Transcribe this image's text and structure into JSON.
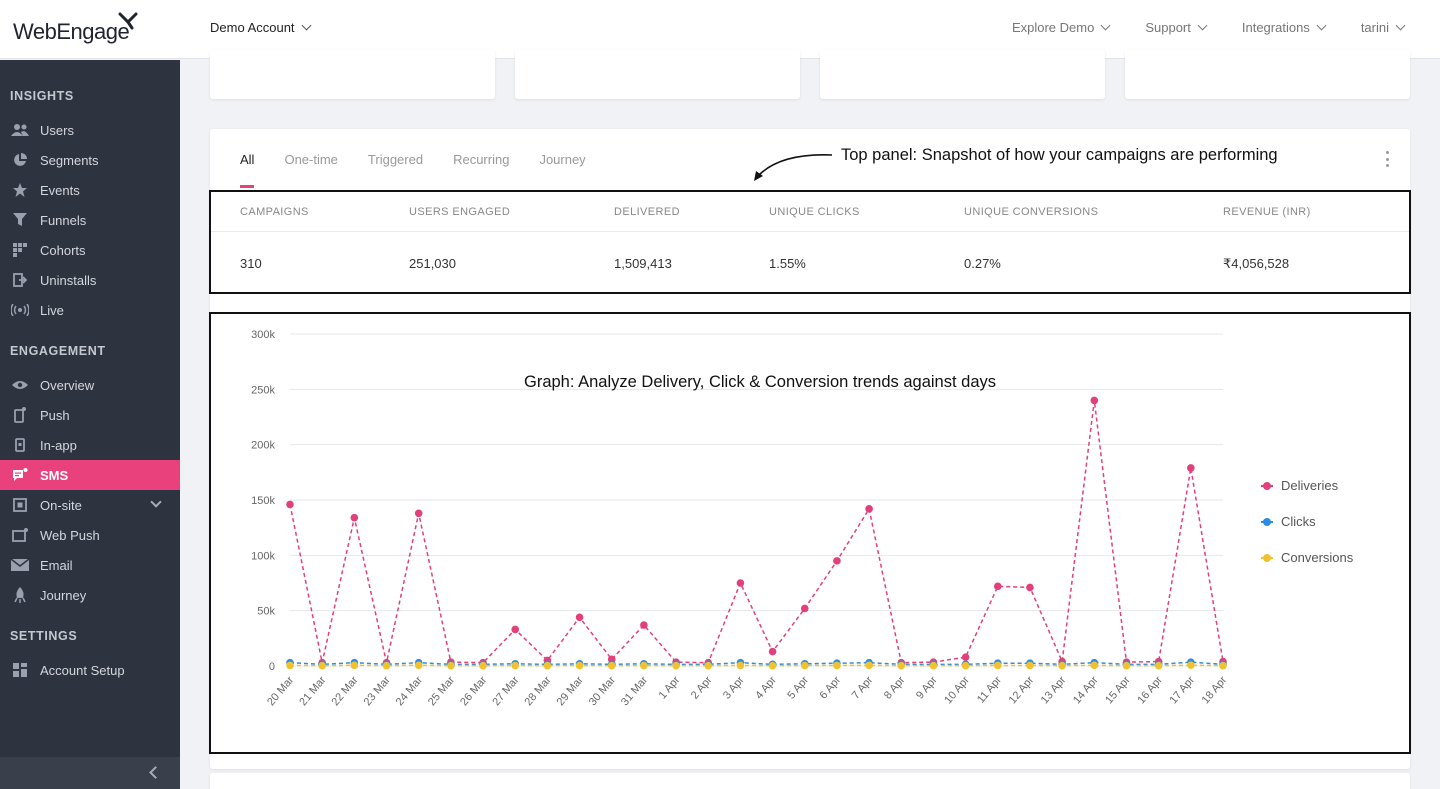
{
  "header": {
    "logo_text": "WebEngage",
    "account": "Demo Account",
    "nav": [
      "Explore Demo",
      "Support",
      "Integrations",
      "tarini"
    ]
  },
  "sidebar": {
    "sections": [
      {
        "title": "INSIGHTS",
        "items": [
          {
            "label": "Users",
            "icon": "users-icon"
          },
          {
            "label": "Segments",
            "icon": "pie-icon"
          },
          {
            "label": "Events",
            "icon": "star-icon"
          },
          {
            "label": "Funnels",
            "icon": "funnel-icon"
          },
          {
            "label": "Cohorts",
            "icon": "grid-icon"
          },
          {
            "label": "Uninstalls",
            "icon": "exit-icon"
          },
          {
            "label": "Live",
            "icon": "broadcast-icon"
          }
        ]
      },
      {
        "title": "ENGAGEMENT",
        "items": [
          {
            "label": "Overview",
            "icon": "eye-icon"
          },
          {
            "label": "Push",
            "icon": "mobile-icon"
          },
          {
            "label": "In-app",
            "icon": "tablet-icon"
          },
          {
            "label": "SMS",
            "icon": "chat-icon",
            "active": true
          },
          {
            "label": "On-site",
            "icon": "monitor-icon",
            "expandable": true
          },
          {
            "label": "Web Push",
            "icon": "browser-icon"
          },
          {
            "label": "Email",
            "icon": "mail-icon"
          },
          {
            "label": "Journey",
            "icon": "rocket-icon"
          }
        ]
      },
      {
        "title": "SETTINGS",
        "items": [
          {
            "label": "Account Setup",
            "icon": "grid-icon"
          }
        ]
      }
    ]
  },
  "tabs": [
    "All",
    "One-time",
    "Triggered",
    "Recurring",
    "Journey"
  ],
  "annotations": {
    "top": "Top panel: Snapshot of how your campaigns are performing",
    "graph": "Graph: Analyze Delivery, Click & Conversion trends against days"
  },
  "stats": {
    "headers": [
      "CAMPAIGNS",
      "USERS ENGAGED",
      "DELIVERED",
      "UNIQUE CLICKS",
      "UNIQUE CONVERSIONS",
      "REVENUE (INR)"
    ],
    "values": [
      "310",
      "251,030",
      "1,509,413",
      "1.55%",
      "0.27%",
      "₹4,056,528"
    ]
  },
  "colors": {
    "accent": "#e9417c",
    "deliveries": "#e2407d",
    "clicks": "#2d8de3",
    "conversions": "#f2c12e"
  },
  "chart_data": {
    "type": "line",
    "categories": [
      "20 Mar",
      "21 Mar",
      "22 Mar",
      "23 Mar",
      "24 Mar",
      "25 Mar",
      "26 Mar",
      "27 Mar",
      "28 Mar",
      "29 Mar",
      "30 Mar",
      "31 Mar",
      "1 Apr",
      "2 Apr",
      "3 Apr",
      "4 Apr",
      "5 Apr",
      "6 Apr",
      "7 Apr",
      "8 Apr",
      "9 Apr",
      "10 Apr",
      "11 Apr",
      "12 Apr",
      "13 Apr",
      "14 Apr",
      "15 Apr",
      "16 Apr",
      "17 Apr",
      "18 Apr"
    ],
    "ylim": [
      0,
      300000
    ],
    "yticks": [
      "300k",
      "250k",
      "200k",
      "150k",
      "100k",
      "50k",
      "0"
    ],
    "grid": true,
    "legend_position": "right",
    "series": [
      {
        "name": "Deliveries",
        "values": [
          146000,
          3000,
          134000,
          3000,
          138000,
          3500,
          3000,
          33000,
          5000,
          44000,
          6000,
          37000,
          3500,
          3000,
          75000,
          13000,
          52000,
          95000,
          142000,
          3000,
          3500,
          8000,
          72000,
          71000,
          4000,
          240000,
          3500,
          4000,
          179000,
          4000
        ]
      },
      {
        "name": "Clicks",
        "values": [
          3000,
          1500,
          3000,
          1500,
          3000,
          1500,
          1500,
          2000,
          1500,
          2000,
          1500,
          2000,
          1500,
          1500,
          3000,
          1500,
          2000,
          2500,
          3000,
          1500,
          1500,
          1500,
          2500,
          2500,
          1500,
          3000,
          1500,
          1500,
          3500,
          1500
        ]
      },
      {
        "name": "Conversions",
        "values": [
          500,
          300,
          600,
          300,
          600,
          300,
          300,
          400,
          300,
          400,
          300,
          400,
          300,
          300,
          500,
          300,
          400,
          500,
          600,
          300,
          300,
          300,
          500,
          500,
          300,
          600,
          300,
          300,
          700,
          300
        ]
      }
    ]
  }
}
